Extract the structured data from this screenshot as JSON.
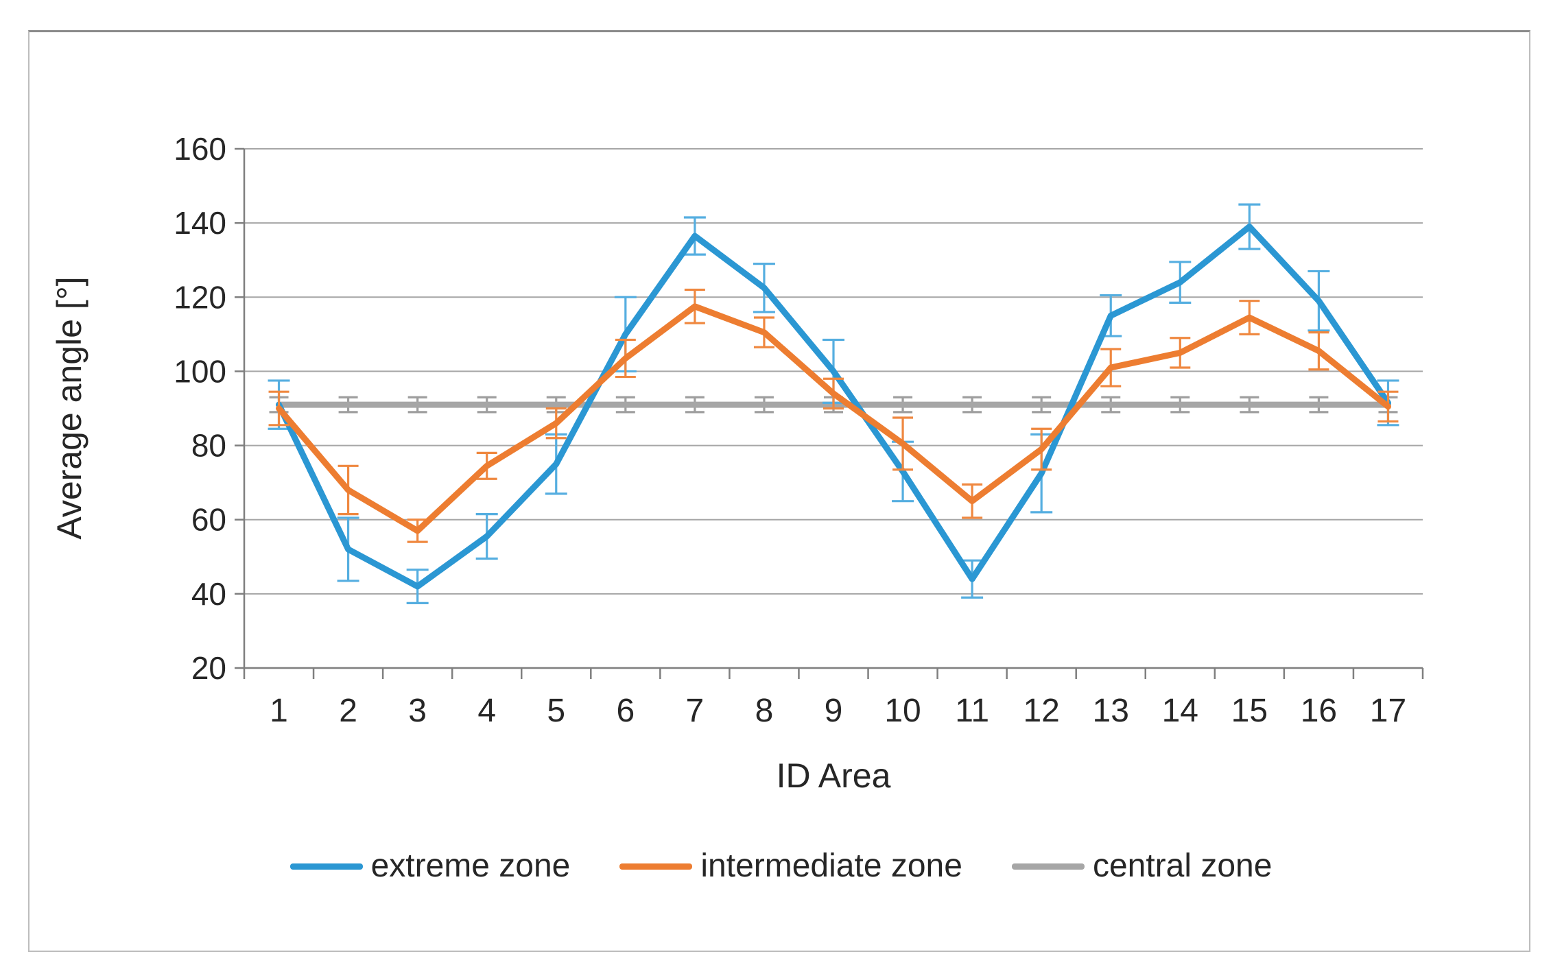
{
  "figure": {
    "background": "#ffffff",
    "border_color": "#bdbdbd"
  },
  "chart_data": {
    "type": "line",
    "title": "",
    "xlabel": "ID Area",
    "ylabel": "Average angle [°]",
    "categories": [
      "1",
      "2",
      "3",
      "4",
      "5",
      "6",
      "7",
      "8",
      "9",
      "10",
      "11",
      "12",
      "13",
      "14",
      "15",
      "16",
      "17"
    ],
    "ylim": [
      20,
      160
    ],
    "ytick_step": 20,
    "yticks": [
      20,
      40,
      60,
      80,
      100,
      120,
      140,
      160
    ],
    "grid": "horizontal",
    "grid_color": "#a6a6a6",
    "axis_color": "#7f7f7f",
    "text_color": "#262626",
    "legend_position": "bottom",
    "error_bars": true,
    "series": [
      {
        "name": "extreme zone",
        "color": "#2b97d3",
        "errorbar_color": "#55aee0",
        "values": [
          91,
          52,
          42,
          55.5,
          75,
          110,
          136.5,
          122.5,
          100,
          73,
          44,
          72.5,
          115,
          124,
          139,
          119,
          91.5
        ],
        "errors": [
          6.5,
          8.5,
          4.5,
          6,
          8,
          10,
          5,
          6.5,
          8.5,
          8,
          5,
          10.5,
          5.5,
          5.5,
          6,
          8,
          6
        ]
      },
      {
        "name": "intermediate zone",
        "color": "#ed7d31",
        "errorbar_color": "#ef8840",
        "values": [
          90,
          68,
          57,
          74.5,
          86,
          103.5,
          117.5,
          110.5,
          94,
          80.5,
          65,
          79,
          101,
          105,
          114.5,
          105.5,
          90.5
        ],
        "errors": [
          4.5,
          6.5,
          3,
          3.5,
          4,
          5,
          4.5,
          4,
          4,
          7,
          4.5,
          5.5,
          5,
          4,
          4.5,
          5,
          4
        ]
      },
      {
        "name": "central zone",
        "color": "#a6a6a6",
        "errorbar_color": "#9e9e9e",
        "values": [
          91,
          91,
          91,
          91,
          91,
          91,
          91,
          91,
          91,
          91,
          91,
          91,
          91,
          91,
          91,
          91,
          91
        ],
        "errors": [
          2,
          2,
          2,
          2,
          2,
          2,
          2,
          2,
          2,
          2,
          2,
          2,
          2,
          2,
          2,
          2,
          2
        ]
      }
    ]
  }
}
